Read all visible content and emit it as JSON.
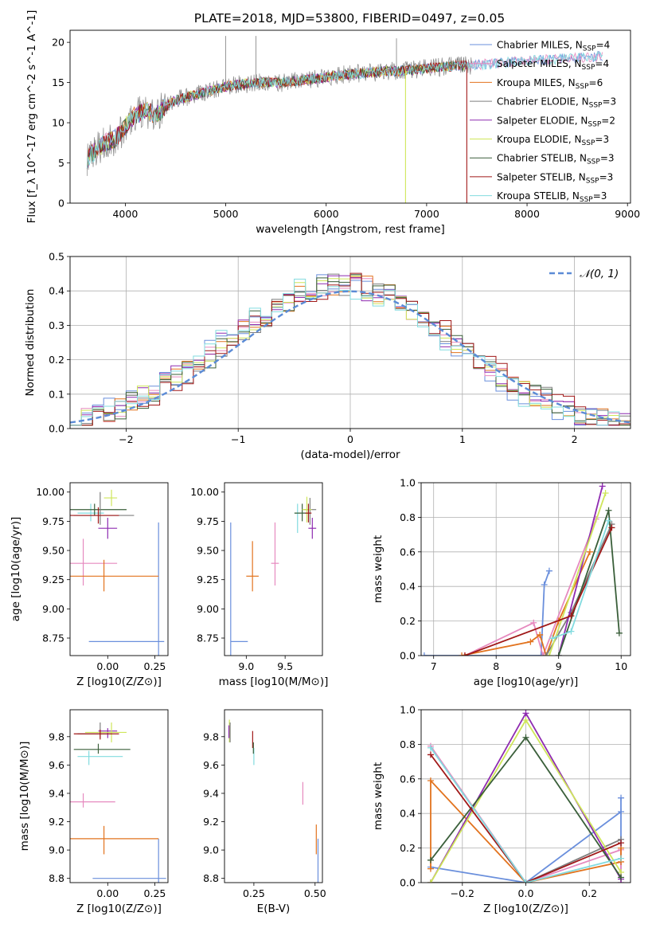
{
  "title": "PLATE=2018, MJD=53800, FIBERID=0497, z=0.05",
  "colors": {
    "Chabrier MILES": "#6a8fdc",
    "Salpeter MILES": "#e68abf",
    "Kroupa MILES": "#e2731e",
    "Chabrier ELODIE": "#7f7f7f",
    "Salpeter ELODIE": "#8e2bb0",
    "Kroupa ELODIE": "#cfe65a",
    "Chabrier STELIB": "#3a5f3a",
    "Salpeter STELIB": "#a01818",
    "Kroupa STELIB": "#82dbdf"
  },
  "chart_data": [
    {
      "id": "spectrum",
      "type": "line",
      "xlabel": "wavelength [Angstrom, rest frame]",
      "ylabel": "Flux [f_λ 10^-17 erg cm^-2 s^-1 A^-1]",
      "xlim": [
        3450,
        9030
      ],
      "ylim": [
        0,
        21.5
      ],
      "xticks": [
        4000,
        5000,
        6000,
        7000,
        8000,
        9000
      ],
      "yticks": [
        0,
        5,
        10,
        15,
        20
      ],
      "legend": [
        {
          "label": "Chabrier MILES, N",
          "sub": "SSP",
          "suffix": "=4"
        },
        {
          "label": "Salpeter MILES, N",
          "sub": "SSP",
          "suffix": "=4"
        },
        {
          "label": "Kroupa MILES, N",
          "sub": "SSP",
          "suffix": "=6"
        },
        {
          "label": "Chabrier ELODIE, N",
          "sub": "SSP",
          "suffix": "=3"
        },
        {
          "label": "Salpeter ELODIE, N",
          "sub": "SSP",
          "suffix": "=2"
        },
        {
          "label": "Kroupa ELODIE, N",
          "sub": "SSP",
          "suffix": "=3"
        },
        {
          "label": "Chabrier STELIB, N",
          "sub": "SSP",
          "suffix": "=3"
        },
        {
          "label": "Salpeter STELIB, N",
          "sub": "SSP",
          "suffix": "=3"
        },
        {
          "label": "Kroupa STELIB, N",
          "sub": "SSP",
          "suffix": "=3"
        }
      ],
      "legend_position": "right",
      "continuum": {
        "x": [
          3620,
          3700,
          3800,
          3900,
          4000,
          4100,
          4200,
          4300,
          4400,
          4500,
          4700,
          5000,
          5300,
          5600,
          5900,
          6200,
          6500,
          6800,
          7000,
          7200,
          7500,
          7800,
          8100,
          8400,
          8700,
          8800
        ],
        "y": [
          5.5,
          6.5,
          7.5,
          8.0,
          9.5,
          11.0,
          11.5,
          11.0,
          12.0,
          12.8,
          13.5,
          14.5,
          15.0,
          15.0,
          15.5,
          16.0,
          16.3,
          16.5,
          16.8,
          17.0,
          17.2,
          17.5,
          17.8,
          18.0,
          18.2,
          18.4
        ]
      },
      "grey_spikes": [
        {
          "x": 5000,
          "y": 20.8
        },
        {
          "x": 5300,
          "y": 20.8
        },
        {
          "x": 6700,
          "y": 20.5
        }
      ],
      "dropouts": [
        {
          "x": 6790,
          "color": "Kroupa ELODIE"
        },
        {
          "x": 7400,
          "color": "Salpeter STELIB"
        }
      ]
    },
    {
      "id": "residual_hist",
      "type": "bar",
      "xlabel": "(data-model)/error",
      "ylabel": "Normed distribution",
      "xlim": [
        -2.5,
        2.5
      ],
      "ylim": [
        0,
        0.5
      ],
      "xticks": [
        -2,
        -1,
        0,
        1,
        2
      ],
      "yticks": [
        0.0,
        0.1,
        0.2,
        0.3,
        0.4,
        0.5
      ],
      "grid": true,
      "bins": {
        "start": -2.5,
        "width": 0.1,
        "count": 50
      },
      "gaussian": {
        "name": "𝒩(0, 1)",
        "mean": 0,
        "sigma": 1,
        "color": "#5b8bd6"
      },
      "legend_position": "upper right"
    },
    {
      "id": "age_vs_Z",
      "type": "scatter",
      "xlabel": "Z [log10(Z/Z⊙)]",
      "ylabel": "age [log10(age/yr)]",
      "xlim": [
        -0.2,
        0.32
      ],
      "ylim": [
        8.6,
        10.08
      ],
      "xticks": [
        0.0,
        0.25
      ],
      "yticks": [
        8.75,
        9.0,
        9.25,
        9.5,
        9.75,
        10.0
      ],
      "points": [
        {
          "c": "Chabrier MILES",
          "x": 0.27,
          "y": 8.72,
          "xe": [
            -0.1,
            0.3
          ],
          "ye": [
            8.6,
            9.74
          ]
        },
        {
          "c": "Salpeter MILES",
          "x": -0.13,
          "y": 9.39,
          "xe": [
            -0.2,
            0.05
          ],
          "ye": [
            9.2,
            9.6
          ]
        },
        {
          "c": "Kroupa MILES",
          "x": -0.02,
          "y": 9.28,
          "xe": [
            -0.22,
            0.27
          ],
          "ye": [
            9.15,
            9.42
          ]
        },
        {
          "c": "Kroupa STELIB",
          "x": -0.09,
          "y": 9.82,
          "xe": [
            -0.16,
            -0.02
          ],
          "ye": [
            9.75,
            9.9
          ]
        },
        {
          "c": "Chabrier STELIB",
          "x": -0.07,
          "y": 9.85,
          "xe": [
            -0.22,
            0.1
          ],
          "ye": [
            9.8,
            9.9
          ]
        },
        {
          "c": "Chabrier ELODIE",
          "x": -0.04,
          "y": 9.8,
          "xe": [
            -0.18,
            0.14
          ],
          "ye": [
            9.72,
            10.0
          ]
        },
        {
          "c": "Salpeter STELIB",
          "x": -0.05,
          "y": 9.8,
          "xe": [
            -0.2,
            0.06
          ],
          "ye": [
            9.73,
            9.87
          ]
        },
        {
          "c": "Salpeter ELODIE",
          "x": 0.0,
          "y": 9.69,
          "xe": [
            -0.05,
            0.05
          ],
          "ye": [
            9.6,
            9.78
          ]
        },
        {
          "c": "Kroupa ELODIE",
          "x": 0.02,
          "y": 9.95,
          "xe": [
            -0.02,
            0.05
          ],
          "ye": [
            9.88,
            10.02
          ]
        }
      ]
    },
    {
      "id": "age_vs_mass",
      "type": "scatter",
      "xlabel": "mass [log10(M/M⊙)]",
      "ylabel": "",
      "xlim": [
        8.72,
        9.98
      ],
      "ylim": [
        8.6,
        10.08
      ],
      "xticks": [
        9.0,
        9.5
      ],
      "yticks": [
        8.75,
        9.0,
        9.25,
        9.5,
        9.75,
        10.0
      ],
      "points": [
        {
          "c": "Chabrier MILES",
          "x": 8.8,
          "y": 8.72,
          "xe": [
            8.8,
            9.02
          ],
          "ye": [
            8.6,
            9.74
          ]
        },
        {
          "c": "Kroupa MILES",
          "x": 9.08,
          "y": 9.28,
          "xe": [
            9.0,
            9.16
          ],
          "ye": [
            9.15,
            9.58
          ]
        },
        {
          "c": "Salpeter MILES",
          "x": 9.37,
          "y": 9.39,
          "xe": [
            9.32,
            9.42
          ],
          "ye": [
            9.2,
            9.74
          ]
        },
        {
          "c": "Kroupa STELIB",
          "x": 9.66,
          "y": 9.82,
          "xe": [
            9.62,
            9.7
          ],
          "ye": [
            9.65,
            9.9
          ]
        },
        {
          "c": "Chabrier STELIB",
          "x": 9.72,
          "y": 9.82,
          "xe": [
            9.62,
            9.82
          ],
          "ye": [
            9.75,
            9.9
          ]
        },
        {
          "c": "Chabrier ELODIE",
          "x": 9.82,
          "y": 9.85,
          "xe": [
            9.74,
            9.9
          ],
          "ye": [
            9.72,
            9.95
          ]
        },
        {
          "c": "Salpeter ELODIE",
          "x": 9.85,
          "y": 9.69,
          "xe": [
            9.8,
            9.9
          ],
          "ye": [
            9.6,
            9.78
          ]
        },
        {
          "c": "Kroupa ELODIE",
          "x": 9.78,
          "y": 9.85,
          "xe": [
            9.72,
            9.84
          ],
          "ye": [
            9.74,
            9.96
          ]
        },
        {
          "c": "Salpeter STELIB",
          "x": 9.8,
          "y": 9.82,
          "xe": [
            9.76,
            9.84
          ],
          "ye": [
            9.74,
            9.9
          ]
        }
      ]
    },
    {
      "id": "massweight_vs_age",
      "type": "line",
      "xlabel": "age [log10(age/yr)]",
      "ylabel": "mass weight",
      "xlim": [
        6.8,
        10.15
      ],
      "ylim": [
        0,
        1.0
      ],
      "xticks": [
        7,
        8,
        9,
        10
      ],
      "yticks": [
        0.0,
        0.2,
        0.4,
        0.6,
        0.8,
        1.0
      ],
      "grid": true,
      "series": [
        {
          "c": "Chabrier MILES",
          "x": [
            6.85,
            8.72,
            8.77,
            8.85
          ],
          "y": [
            0.0,
            0.0,
            0.41,
            0.49
          ]
        },
        {
          "c": "Salpeter MILES",
          "x": [
            7.5,
            8.6,
            8.75,
            9.6
          ],
          "y": [
            0.0,
            0.19,
            0.0,
            0.79
          ]
        },
        {
          "c": "Kroupa MILES",
          "x": [
            7.45,
            8.55,
            8.7,
            8.8,
            9.0,
            9.5
          ],
          "y": [
            0.0,
            0.08,
            0.12,
            0.0,
            0.2,
            0.6
          ]
        },
        {
          "c": "Chabrier ELODIE",
          "x": [
            8.8,
            9.2,
            9.85
          ],
          "y": [
            0.0,
            0.25,
            0.76
          ]
        },
        {
          "c": "Salpeter ELODIE",
          "x": [
            9.0,
            9.7
          ],
          "y": [
            0.0,
            0.98
          ]
        },
        {
          "c": "Kroupa ELODIE",
          "x": [
            8.85,
            9.75
          ],
          "y": [
            0.0,
            0.94
          ]
        },
        {
          "c": "Chabrier STELIB",
          "x": [
            9.0,
            9.8,
            9.97
          ],
          "y": [
            0.0,
            0.84,
            0.13
          ]
        },
        {
          "c": "Salpeter STELIB",
          "x": [
            7.5,
            9.2,
            9.85
          ],
          "y": [
            0.0,
            0.23,
            0.74
          ]
        },
        {
          "c": "Kroupa STELIB",
          "x": [
            8.9,
            9.2,
            9.8
          ],
          "y": [
            0.1,
            0.14,
            0.78
          ]
        }
      ]
    },
    {
      "id": "mass_vs_Z",
      "type": "scatter",
      "xlabel": "Z [log10(Z/Z⊙)]",
      "ylabel": "mass [log10(M/M⊙)]",
      "xlim": [
        -0.2,
        0.32
      ],
      "ylim": [
        8.77,
        9.99
      ],
      "xticks": [
        0.0,
        0.25
      ],
      "yticks": [
        8.8,
        9.0,
        9.2,
        9.4,
        9.6,
        9.8
      ],
      "points": [
        {
          "c": "Chabrier MILES",
          "x": 0.27,
          "y": 8.8,
          "xe": [
            -0.08,
            0.31
          ],
          "ye": [
            8.77,
            9.08
          ]
        },
        {
          "c": "Kroupa MILES",
          "x": -0.02,
          "y": 9.08,
          "xe": [
            -0.22,
            0.27
          ],
          "ye": [
            8.97,
            9.17
          ]
        },
        {
          "c": "Salpeter MILES",
          "x": -0.13,
          "y": 9.34,
          "xe": [
            -0.2,
            0.04
          ],
          "ye": [
            9.3,
            9.4
          ]
        },
        {
          "c": "Kroupa STELIB",
          "x": -0.1,
          "y": 9.66,
          "xe": [
            -0.16,
            0.08
          ],
          "ye": [
            9.6,
            9.7
          ]
        },
        {
          "c": "Chabrier STELIB",
          "x": -0.05,
          "y": 9.71,
          "xe": [
            -0.18,
            0.12
          ],
          "ye": [
            9.68,
            9.75
          ]
        },
        {
          "c": "Chabrier ELODIE",
          "x": -0.04,
          "y": 9.82,
          "xe": [
            -0.16,
            0.02
          ],
          "ye": [
            9.79,
            9.9
          ]
        },
        {
          "c": "Salpeter ELODIE",
          "x": 0.0,
          "y": 9.84,
          "xe": [
            -0.05,
            0.05
          ],
          "ye": [
            9.79,
            9.86
          ]
        },
        {
          "c": "Kroupa ELODIE",
          "x": 0.02,
          "y": 9.83,
          "xe": [
            -0.12,
            0.1
          ],
          "ye": [
            9.76,
            9.9
          ]
        },
        {
          "c": "Salpeter STELIB",
          "x": -0.04,
          "y": 9.82,
          "xe": [
            -0.18,
            0.06
          ],
          "ye": [
            9.78,
            9.85
          ]
        }
      ]
    },
    {
      "id": "mass_vs_EBV",
      "type": "scatter",
      "xlabel": "E(B-V)",
      "ylabel": "",
      "xlim": [
        0.13,
        0.53
      ],
      "ylim": [
        8.77,
        9.99
      ],
      "xticks": [
        0.25,
        0.5
      ],
      "yticks": [
        8.8,
        9.0,
        9.2,
        9.4,
        9.6,
        9.8
      ],
      "points": [
        {
          "c": "Chabrier MILES",
          "x": 0.512,
          "y": 8.8,
          "xe": [
            0.512,
            0.512
          ],
          "ye": [
            8.77,
            9.08
          ]
        },
        {
          "c": "Kroupa MILES",
          "x": 0.505,
          "y": 9.08,
          "xe": [
            0.505,
            0.505
          ],
          "ye": [
            8.97,
            9.18
          ]
        },
        {
          "c": "Salpeter MILES",
          "x": 0.45,
          "y": 9.4,
          "xe": [
            0.45,
            0.45
          ],
          "ye": [
            9.32,
            9.48
          ]
        },
        {
          "c": "Kroupa STELIB",
          "x": 0.25,
          "y": 9.66,
          "xe": [
            0.25,
            0.25
          ],
          "ye": [
            9.6,
            9.72
          ]
        },
        {
          "c": "Salpeter STELIB",
          "x": 0.245,
          "y": 9.78,
          "xe": [
            0.245,
            0.245
          ],
          "ye": [
            9.72,
            9.84
          ]
        },
        {
          "c": "Chabrier STELIB",
          "x": 0.248,
          "y": 9.72,
          "xe": [
            0.248,
            0.248
          ],
          "ye": [
            9.68,
            9.76
          ]
        },
        {
          "c": "Kroupa ELODIE",
          "x": 0.15,
          "y": 9.85,
          "xe": [
            0.15,
            0.15
          ],
          "ye": [
            9.76,
            9.92
          ]
        },
        {
          "c": "Chabrier ELODIE",
          "x": 0.153,
          "y": 9.82,
          "xe": [
            0.153,
            0.153
          ],
          "ye": [
            9.76,
            9.9
          ]
        },
        {
          "c": "Salpeter ELODIE",
          "x": 0.148,
          "y": 9.84,
          "xe": [
            0.148,
            0.148
          ],
          "ye": [
            9.79,
            9.88
          ]
        }
      ]
    },
    {
      "id": "massweight_vs_Z",
      "type": "line",
      "xlabel": "Z [log10(Z/Z⊙)]",
      "ylabel": "mass weight",
      "xlim": [
        -0.33,
        0.33
      ],
      "ylim": [
        0,
        1.0
      ],
      "xticks": [
        -0.2,
        0.0,
        0.2
      ],
      "yticks": [
        0.0,
        0.2,
        0.4,
        0.6,
        0.8,
        1.0
      ],
      "grid": true,
      "series": [
        {
          "c": "Chabrier MILES",
          "x": [
            -0.3,
            0.0,
            0.3,
            0.3,
            0.3
          ],
          "y": [
            0.09,
            0.0,
            0.41,
            0.49,
            0.0
          ]
        },
        {
          "c": "Salpeter MILES",
          "x": [
            -0.3,
            0.0,
            0.3,
            0.3
          ],
          "y": [
            0.79,
            0.0,
            0.19,
            0.0
          ]
        },
        {
          "c": "Kroupa MILES",
          "x": [
            -0.3,
            -0.3,
            0.0,
            0.3,
            0.3
          ],
          "y": [
            0.08,
            0.59,
            0.0,
            0.12,
            0.2
          ]
        },
        {
          "c": "Chabrier ELODIE",
          "x": [
            -0.3,
            0.0,
            0.3
          ],
          "y": [
            0.0,
            0.0,
            0.25
          ]
        },
        {
          "c": "Salpeter ELODIE",
          "x": [
            -0.3,
            0.0,
            0.3
          ],
          "y": [
            0.0,
            0.98,
            0.02
          ]
        },
        {
          "c": "Kroupa ELODIE",
          "x": [
            -0.3,
            0.0,
            0.3
          ],
          "y": [
            0.0,
            0.94,
            0.06
          ]
        },
        {
          "c": "Chabrier STELIB",
          "x": [
            -0.3,
            0.0,
            0.3
          ],
          "y": [
            0.13,
            0.84,
            0.03
          ]
        },
        {
          "c": "Salpeter STELIB",
          "x": [
            -0.3,
            0.0,
            0.3
          ],
          "y": [
            0.74,
            0.0,
            0.23
          ]
        },
        {
          "c": "Kroupa STELIB",
          "x": [
            -0.3,
            0.0,
            0.3
          ],
          "y": [
            0.78,
            0.0,
            0.14
          ]
        }
      ]
    }
  ]
}
